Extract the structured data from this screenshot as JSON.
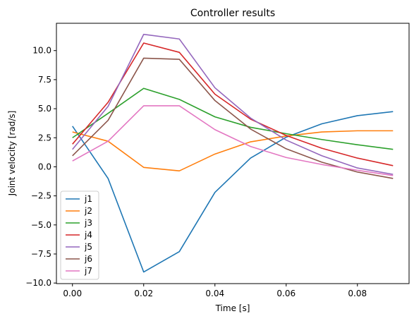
{
  "chart_data": {
    "type": "line",
    "title": "Controller results",
    "xlabel": "Time [s]",
    "ylabel": "Joint velocity [rad/s]",
    "xlim": [
      -0.0045,
      0.0945
    ],
    "ylim": [
      -10.05,
      12.35
    ],
    "x_ticks": [
      0.0,
      0.02,
      0.04,
      0.06,
      0.08
    ],
    "x_tick_labels": [
      "0.00",
      "0.02",
      "0.04",
      "0.06",
      "0.08"
    ],
    "y_ticks": [
      -10.0,
      -7.5,
      -5.0,
      -2.5,
      0.0,
      2.5,
      5.0,
      7.5,
      10.0
    ],
    "y_tick_labels": [
      "−10.0",
      "−7.5",
      "−5.0",
      "−2.5",
      "0.0",
      "2.5",
      "5.0",
      "7.5",
      "10.0"
    ],
    "grid": false,
    "legend_position": "lower-left",
    "x": [
      0.0,
      0.01,
      0.02,
      0.03,
      0.04,
      0.05,
      0.06,
      0.07,
      0.08,
      0.09
    ],
    "series": [
      {
        "name": "j1",
        "color": "#1f77b4",
        "values": [
          3.5,
          -1.0,
          -9.05,
          -7.3,
          -2.2,
          0.75,
          2.55,
          3.7,
          4.4,
          4.75
        ]
      },
      {
        "name": "j2",
        "color": "#ff7f0e",
        "values": [
          3.0,
          2.2,
          -0.05,
          -0.35,
          1.1,
          2.15,
          2.65,
          3.0,
          3.1,
          3.1
        ]
      },
      {
        "name": "j3",
        "color": "#2ca02c",
        "values": [
          2.5,
          4.6,
          6.75,
          5.8,
          4.3,
          3.4,
          2.85,
          2.35,
          1.9,
          1.5
        ]
      },
      {
        "name": "j4",
        "color": "#d62728",
        "values": [
          1.95,
          5.55,
          10.65,
          9.85,
          6.25,
          4.1,
          2.7,
          1.6,
          0.75,
          0.1
        ]
      },
      {
        "name": "j5",
        "color": "#9467bd",
        "values": [
          1.5,
          5.2,
          11.4,
          11.0,
          6.8,
          4.2,
          2.3,
          0.95,
          -0.1,
          -0.65
        ]
      },
      {
        "name": "j6",
        "color": "#8c564b",
        "values": [
          0.95,
          4.0,
          9.35,
          9.25,
          5.7,
          3.25,
          1.55,
          0.4,
          -0.45,
          -1.0
        ]
      },
      {
        "name": "j7",
        "color": "#e377c2",
        "values": [
          0.5,
          2.2,
          5.25,
          5.25,
          3.2,
          1.75,
          0.8,
          0.2,
          -0.3,
          -0.75
        ]
      }
    ]
  }
}
